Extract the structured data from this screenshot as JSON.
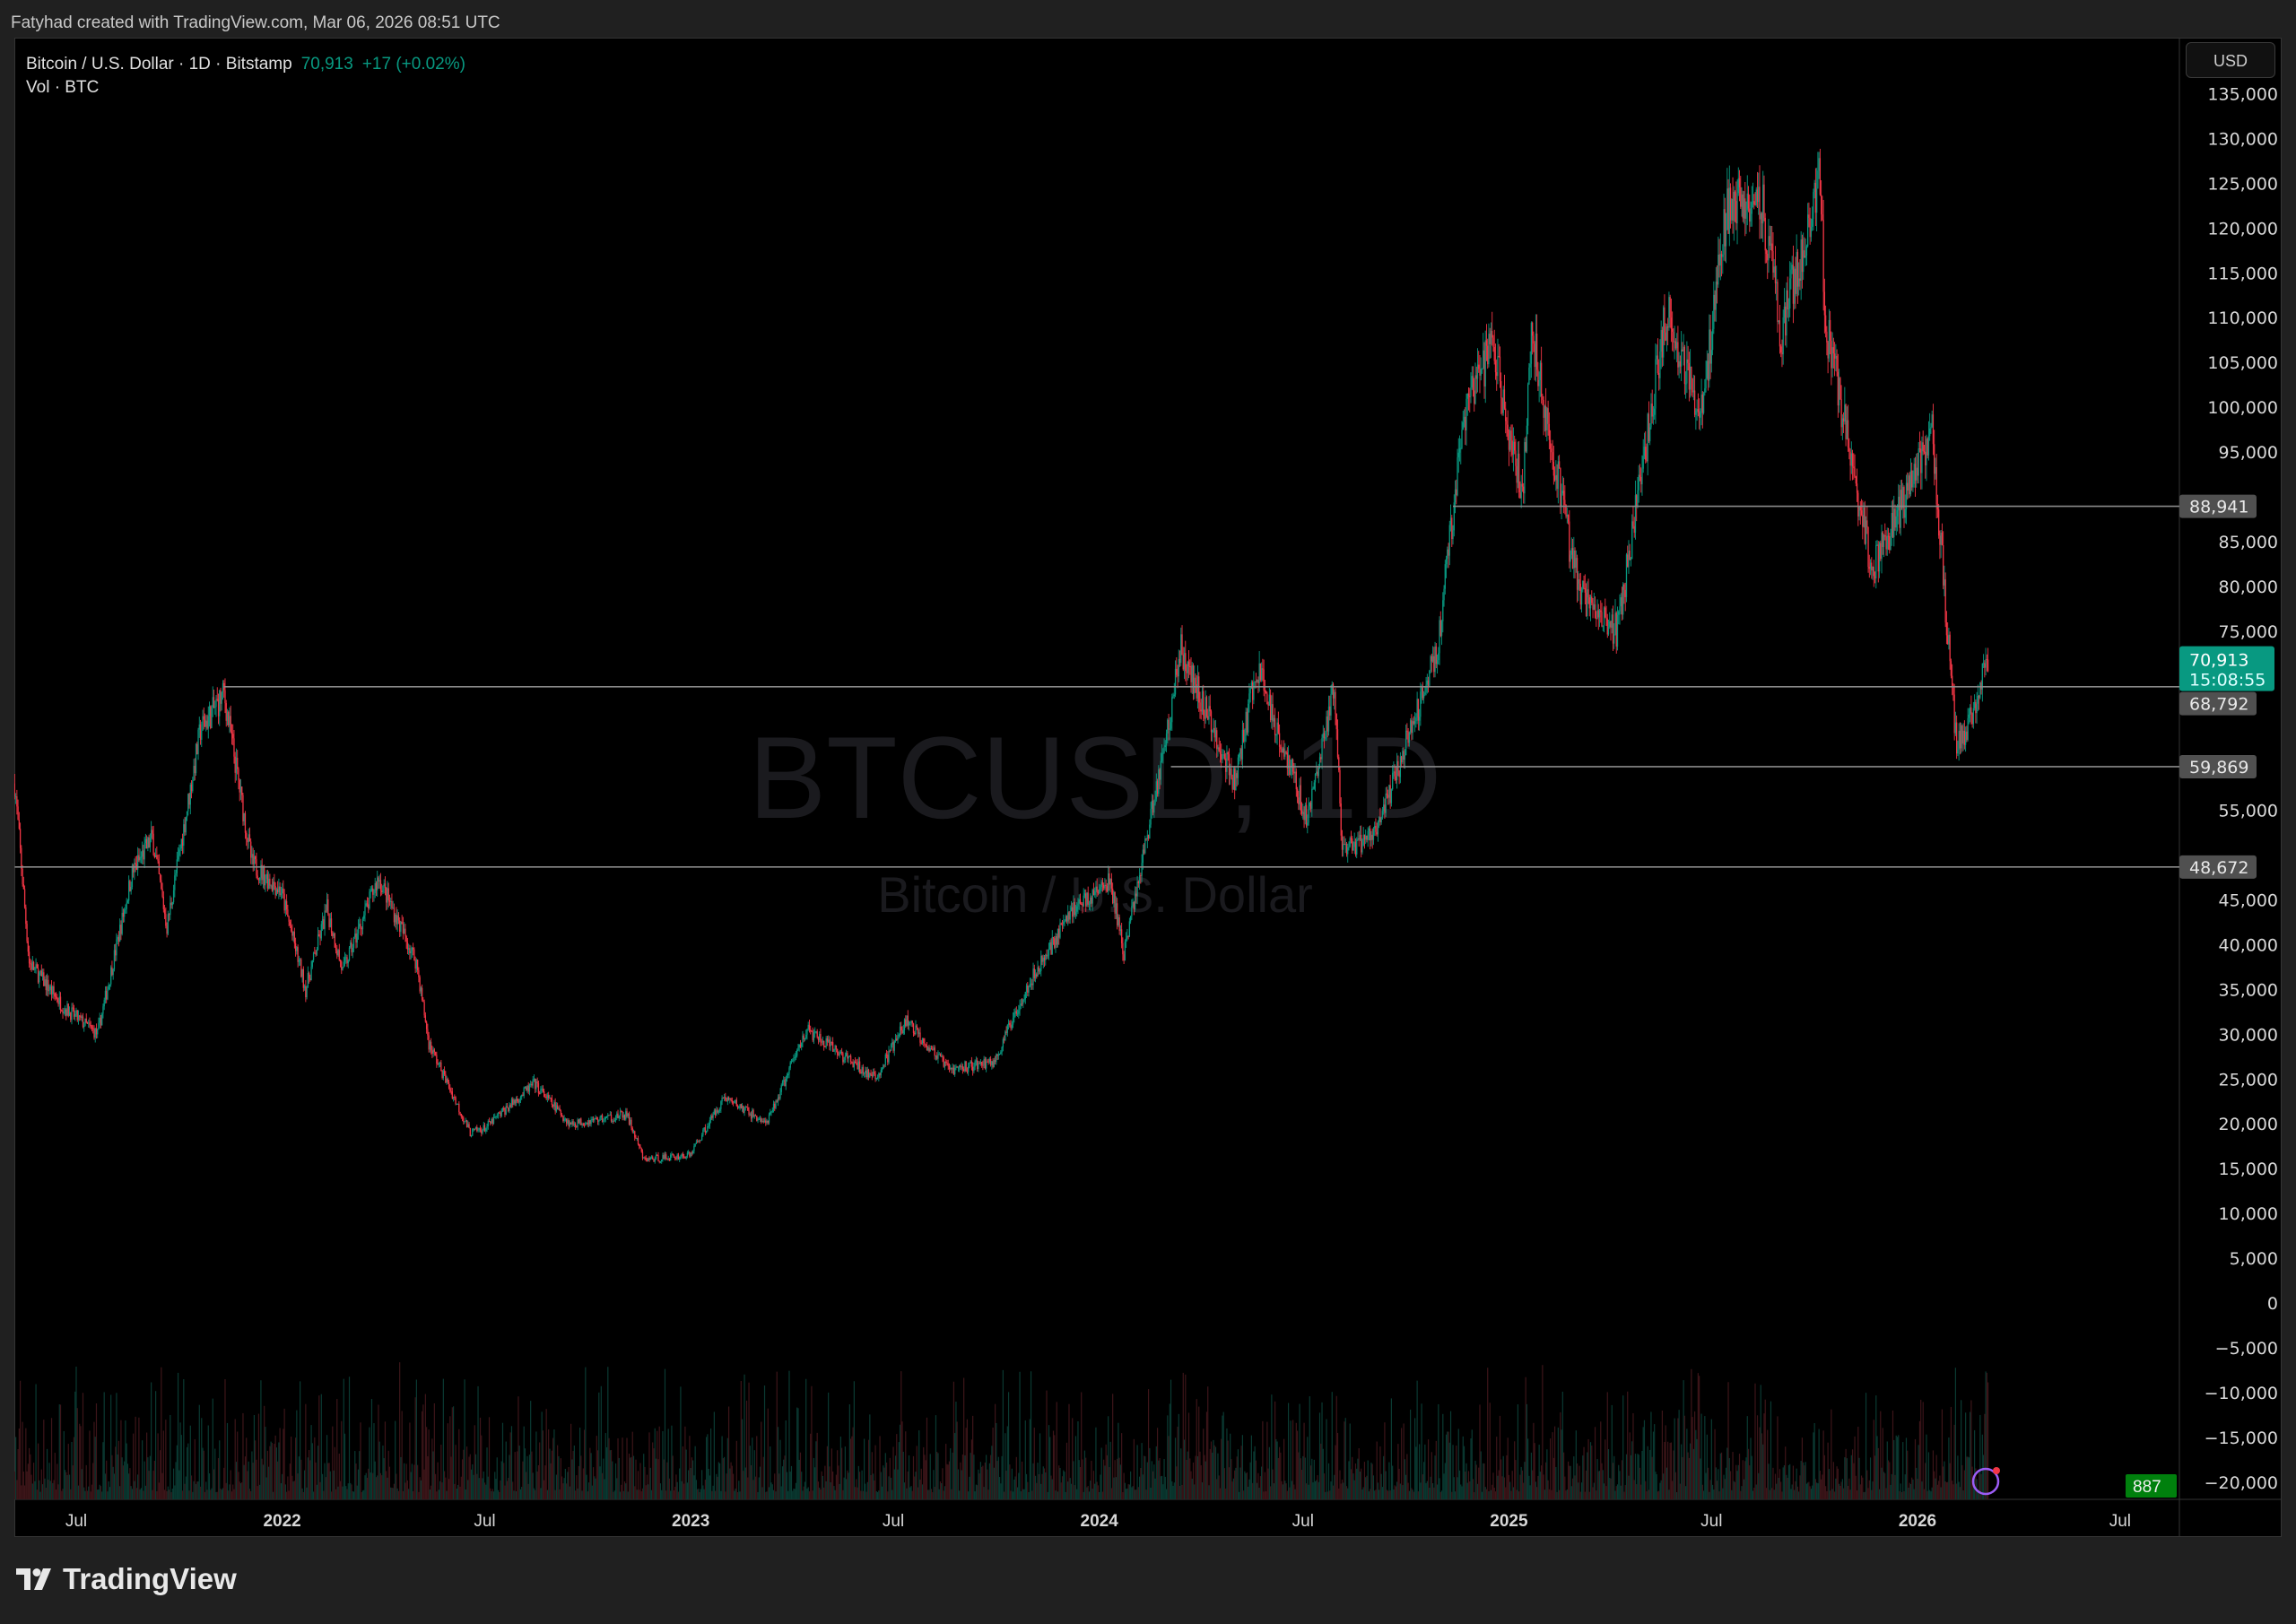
{
  "header": {
    "credit": "Fatyhad created with TradingView.com, Mar 06, 2026 08:51 UTC"
  },
  "legend": {
    "symbol": "Bitcoin / U.S. Dollar · 1D · Bitstamp",
    "last": "70,913",
    "change": "+17 (+0.02%)",
    "volume": "Vol · BTC"
  },
  "axis": {
    "currency": "USD"
  },
  "watermark": {
    "ticker": "BTCUSD, 1D",
    "name": "Bitcoin / U.S. Dollar"
  },
  "footer": {
    "brand": "TradingView"
  },
  "colors": {
    "up": "#089981",
    "down": "#f23645",
    "last_price": "#089981",
    "volume_label": "#00800d",
    "level_label": "#505050"
  },
  "chart_data": {
    "type": "candlestick",
    "interval": "1D",
    "ylim": [
      -20000,
      137000
    ],
    "yticks": [
      135000,
      130000,
      125000,
      120000,
      115000,
      110000,
      105000,
      100000,
      95000,
      90000,
      85000,
      80000,
      75000,
      70000,
      65000,
      60000,
      55000,
      50000,
      45000,
      40000,
      35000,
      30000,
      25000,
      20000,
      15000,
      10000,
      5000,
      0,
      -5000,
      -10000,
      -15000,
      -20000
    ],
    "xticks": [
      {
        "date": "2021-07-01",
        "label": "Jul"
      },
      {
        "date": "2022-01-01",
        "label": "2022"
      },
      {
        "date": "2022-07-01",
        "label": "Jul"
      },
      {
        "date": "2023-01-01",
        "label": "2023"
      },
      {
        "date": "2023-07-01",
        "label": "Jul"
      },
      {
        "date": "2024-01-01",
        "label": "2024"
      },
      {
        "date": "2024-07-01",
        "label": "Jul"
      },
      {
        "date": "2025-01-01",
        "label": "2025"
      },
      {
        "date": "2025-07-01",
        "label": "Jul"
      },
      {
        "date": "2026-01-01",
        "label": "2026"
      },
      {
        "date": "2026-07-01",
        "label": "Jul"
      }
    ],
    "price_path": [
      [
        "2021-05-07",
        58000
      ],
      [
        "2021-05-20",
        38000
      ],
      [
        "2021-06-20",
        33000
      ],
      [
        "2021-07-20",
        30000
      ],
      [
        "2021-08-20",
        48000
      ],
      [
        "2021-09-07",
        52000
      ],
      [
        "2021-09-20",
        42000
      ],
      [
        "2021-10-20",
        64000
      ],
      [
        "2021-11-10",
        68000
      ],
      [
        "2021-12-05",
        49000
      ],
      [
        "2021-12-31",
        46000
      ],
      [
        "2022-01-22",
        35000
      ],
      [
        "2022-02-10",
        44000
      ],
      [
        "2022-02-24",
        37000
      ],
      [
        "2022-03-28",
        47500
      ],
      [
        "2022-05-01",
        38000
      ],
      [
        "2022-05-12",
        29000
      ],
      [
        "2022-06-18",
        19000
      ],
      [
        "2022-07-01",
        19500
      ],
      [
        "2022-08-14",
        24500
      ],
      [
        "2022-09-15",
        20000
      ],
      [
        "2022-11-05",
        21000
      ],
      [
        "2022-11-20",
        16000
      ],
      [
        "2022-12-31",
        16500
      ],
      [
        "2023-01-31",
        23000
      ],
      [
        "2023-03-10",
        20000
      ],
      [
        "2023-04-14",
        30500
      ],
      [
        "2023-06-15",
        25000
      ],
      [
        "2023-07-13",
        31500
      ],
      [
        "2023-08-20",
        26000
      ],
      [
        "2023-09-30",
        27000
      ],
      [
        "2023-10-25",
        34500
      ],
      [
        "2023-12-08",
        44000
      ],
      [
        "2024-01-11",
        47000
      ],
      [
        "2024-01-23",
        39000
      ],
      [
        "2024-02-28",
        62000
      ],
      [
        "2024-03-14",
        73000
      ],
      [
        "2024-05-01",
        58000
      ],
      [
        "2024-05-21",
        71000
      ],
      [
        "2024-07-05",
        54000
      ],
      [
        "2024-07-29",
        69000
      ],
      [
        "2024-08-05",
        50000
      ],
      [
        "2024-09-06",
        53000
      ],
      [
        "2024-10-29",
        73000
      ],
      [
        "2024-11-22",
        99000
      ],
      [
        "2024-12-17",
        107000
      ],
      [
        "2025-01-13",
        90000
      ],
      [
        "2025-01-21",
        109000
      ],
      [
        "2025-02-25",
        84000
      ],
      [
        "2025-03-10",
        78000
      ],
      [
        "2025-04-08",
        75000
      ],
      [
        "2025-05-22",
        111000
      ],
      [
        "2025-06-22",
        99000
      ],
      [
        "2025-07-14",
        122000
      ],
      [
        "2025-08-14",
        124000
      ],
      [
        "2025-09-01",
        108000
      ],
      [
        "2025-10-06",
        126000
      ],
      [
        "2025-10-10",
        110000
      ],
      [
        "2025-11-21",
        82000
      ],
      [
        "2025-12-15",
        88000
      ],
      [
        "2026-01-14",
        97000
      ],
      [
        "2026-02-05",
        62000
      ],
      [
        "2026-02-20",
        66000
      ],
      [
        "2026-03-04",
        73000
      ],
      [
        "2026-03-06",
        70913
      ]
    ],
    "last_price": {
      "value": 70913,
      "label": "70,913",
      "countdown": "15:08:55"
    },
    "levels": [
      {
        "value": 88941,
        "label": "88,941",
        "from": "2024-11-12"
      },
      {
        "value": 68792,
        "label": "68,792",
        "from": "2021-11-10"
      },
      {
        "value": 59869,
        "label": "59,869",
        "from": "2024-03-05"
      },
      {
        "value": 48672,
        "label": "48,672",
        "from": "2021-05-07"
      }
    ],
    "volume": {
      "last": "887"
    },
    "grid": false
  }
}
